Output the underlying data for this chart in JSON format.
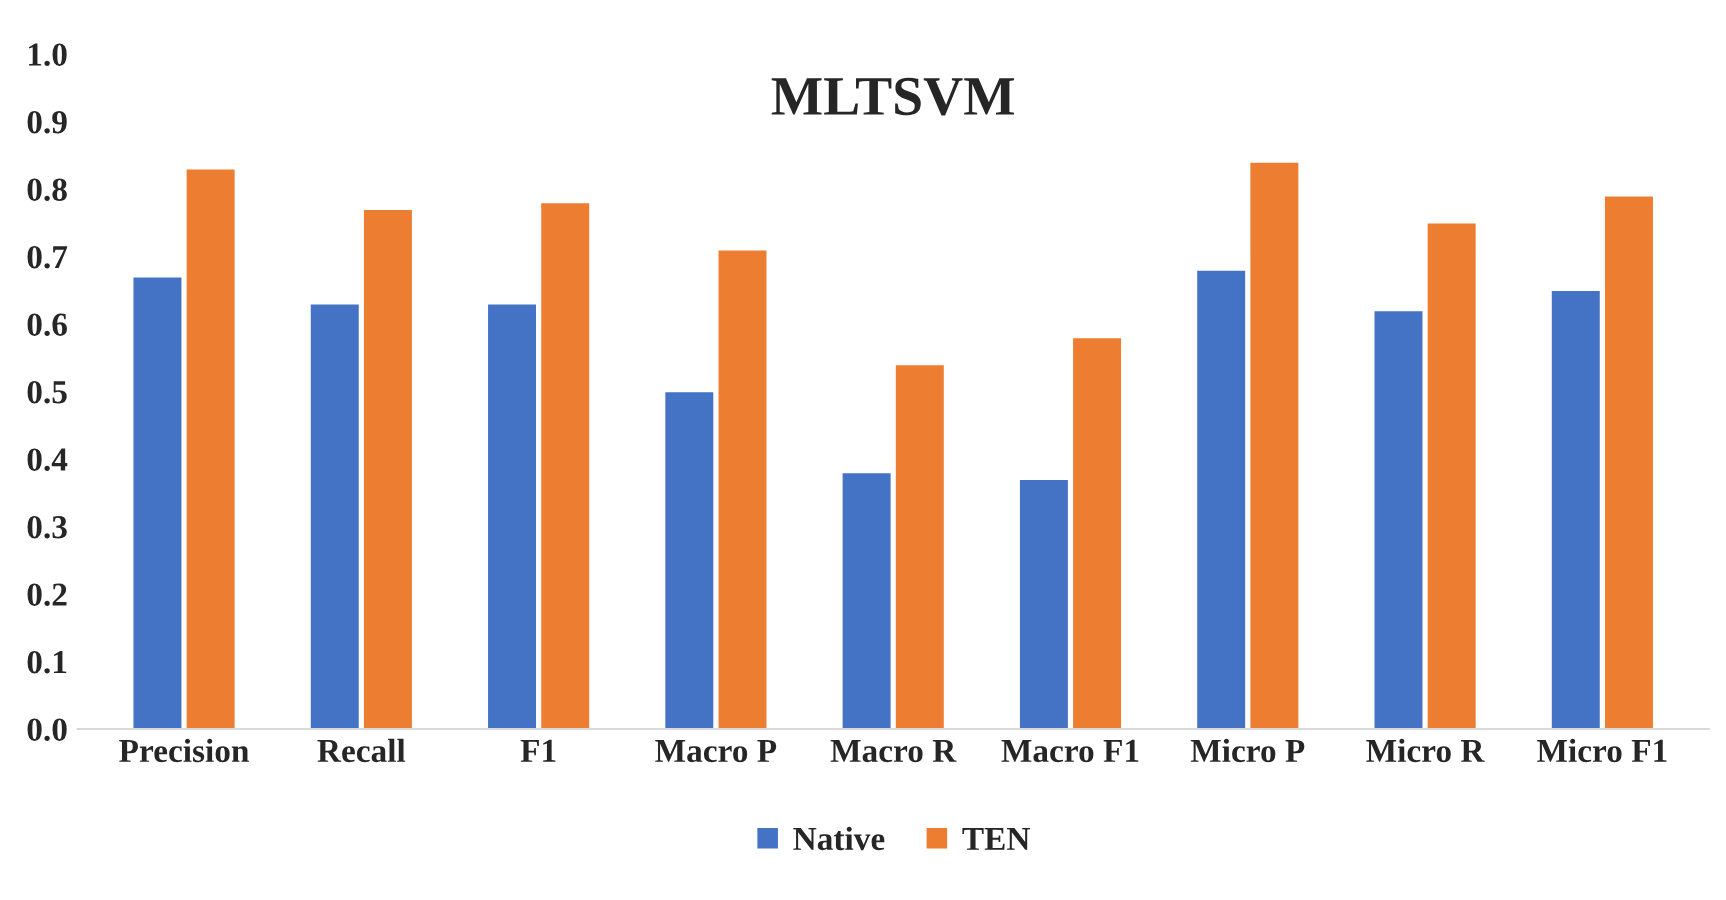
{
  "chart_data": {
    "type": "bar",
    "title": "MLTSVM",
    "categories": [
      "Precision",
      "Recall",
      "F1",
      "Macro P",
      "Macro R",
      "Macro F1",
      "Micro P",
      "Micro R",
      "Micro F1"
    ],
    "series": [
      {
        "name": "Native",
        "color": "#4472c4",
        "values": [
          0.67,
          0.63,
          0.63,
          0.5,
          0.38,
          0.37,
          0.68,
          0.62,
          0.65
        ]
      },
      {
        "name": "TEN",
        "color": "#ed7d31",
        "values": [
          0.83,
          0.77,
          0.78,
          0.71,
          0.54,
          0.58,
          0.84,
          0.75,
          0.79
        ]
      }
    ],
    "ylim": [
      0,
      1.0
    ],
    "yticks": [
      {
        "value": 0,
        "label": "0.0"
      },
      {
        "value": 0.1,
        "label": "0.1"
      },
      {
        "value": 0.2,
        "label": "0.2"
      },
      {
        "value": 0.3,
        "label": "0.3"
      },
      {
        "value": 0.4,
        "label": "0.4"
      },
      {
        "value": 0.5,
        "label": "0.5"
      },
      {
        "value": 0.6,
        "label": "0.6"
      },
      {
        "value": 0.7,
        "label": "0.7"
      },
      {
        "value": 0.8,
        "label": "0.8"
      },
      {
        "value": 0.9,
        "label": "0.9"
      },
      {
        "value": 1.0,
        "label": "1.0"
      }
    ],
    "grid": false,
    "legend": "bottom"
  }
}
